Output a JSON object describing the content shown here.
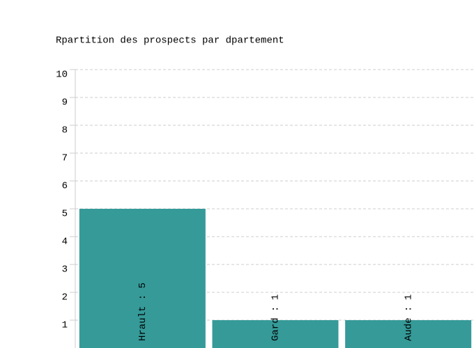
{
  "chart_data": {
    "type": "bar",
    "title": "Rpartition des prospects par dpartement",
    "categories": [
      "Hrault : 5",
      "Gard : 1",
      "Aude : 1"
    ],
    "values": [
      5,
      1,
      1
    ],
    "color": "#359a98",
    "ylim": [
      0,
      10
    ],
    "yticks": [
      1,
      2,
      3,
      4,
      5,
      6,
      7,
      8,
      9,
      10
    ],
    "grid": true
  }
}
